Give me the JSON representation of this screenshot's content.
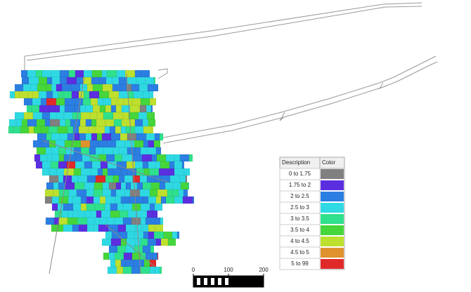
{
  "legend": {
    "header": [
      "Description",
      "Color"
    ],
    "rows": [
      {
        "description": "0 to 1.75",
        "color": "#808080"
      },
      {
        "description": "1.75 to 2",
        "color": "#5b2fe0"
      },
      {
        "description": "2 to 2.5",
        "color": "#2b7fe2"
      },
      {
        "description": "2.5 to 3",
        "color": "#2fd9e3"
      },
      {
        "description": "3 to 3.5",
        "color": "#2fe08c"
      },
      {
        "description": "3.5 to 4",
        "color": "#45d63b"
      },
      {
        "description": "4 to 4.5",
        "color": "#bde02f"
      },
      {
        "description": "4.5 to 5",
        "color": "#e0922f"
      },
      {
        "description": "5 to 99",
        "color": "#e02a2a"
      }
    ]
  },
  "scale_bar": {
    "ticks": [
      0,
      100,
      200
    ]
  }
}
